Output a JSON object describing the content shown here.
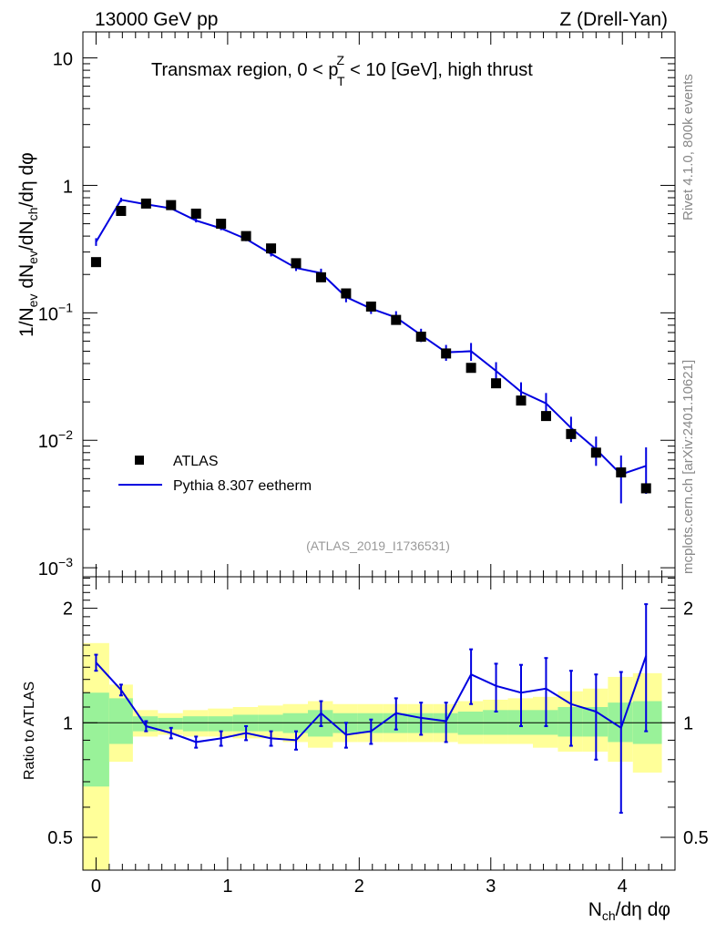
{
  "header": {
    "left": "13000 GeV pp",
    "right": "Z (Drell-Yan)"
  },
  "side_labels": {
    "top": "Rivet 4.1.0,  800k events",
    "bottom": "mcplots.cern.ch [arXiv:2401.10621]"
  },
  "chart_data": [
    {
      "type": "scatter",
      "title": "Transmax region, 0 < p_T^Z < 10 [GeV], high thrust",
      "title_parts": {
        "pre": "Transmax region, 0 < p",
        "sup": "Z",
        "sub": "T",
        "post": " < 10 [GeV], high thrust"
      },
      "ylabel": "1/N_ev dN_ev/dN_ch/dη dφ",
      "yscale": "log",
      "ylim": [
        0.00085,
        16
      ],
      "xlim": [
        -0.1,
        4.4
      ],
      "ytick_labels": [
        {
          "v": 0.001,
          "base": "10",
          "exp": "−3"
        },
        {
          "v": 0.01,
          "base": "10",
          "exp": "−2"
        },
        {
          "v": 0.1,
          "base": "10",
          "exp": "−1"
        },
        {
          "v": 1,
          "base": "1",
          "exp": ""
        },
        {
          "v": 10,
          "base": "10",
          "exp": ""
        }
      ],
      "watermark": "(ATLAS_2019_I1736531)",
      "legend": {
        "position": "bottom-left",
        "entries": [
          "ATLAS",
          "Pythia 8.307 eetherm"
        ]
      },
      "series": [
        {
          "name": "ATLAS",
          "style": "markers",
          "color": "#000000",
          "x": [
            0,
            0.19,
            0.38,
            0.57,
            0.76,
            0.95,
            1.14,
            1.33,
            1.52,
            1.71,
            1.9,
            2.09,
            2.28,
            2.47,
            2.66,
            2.85,
            3.04,
            3.23,
            3.42,
            3.61,
            3.8,
            3.99,
            4.18
          ],
          "y": [
            0.25,
            0.63,
            0.72,
            0.7,
            0.6,
            0.5,
            0.4,
            0.32,
            0.245,
            0.19,
            0.142,
            0.112,
            0.088,
            0.065,
            0.048,
            0.037,
            0.028,
            0.0205,
            0.0155,
            0.0112,
            0.008,
            0.0056,
            0.0042
          ]
        },
        {
          "name": "Pythia 8.307 eetherm",
          "style": "line",
          "color": "#0000e0",
          "x": [
            0,
            0.19,
            0.38,
            0.57,
            0.76,
            0.95,
            1.14,
            1.33,
            1.52,
            1.71,
            1.9,
            2.09,
            2.28,
            2.47,
            2.66,
            2.85,
            3.04,
            3.23,
            3.42,
            3.61,
            3.8,
            3.99,
            4.18
          ],
          "y": [
            0.36,
            0.77,
            0.71,
            0.66,
            0.53,
            0.46,
            0.38,
            0.29,
            0.225,
            0.205,
            0.133,
            0.108,
            0.092,
            0.067,
            0.049,
            0.05,
            0.035,
            0.024,
            0.0195,
            0.0125,
            0.0085,
            0.0054,
            0.0063
          ],
          "err": [
            0.025,
            0.03,
            0.02,
            0.02,
            0.018,
            0.015,
            0.015,
            0.013,
            0.012,
            0.017,
            0.012,
            0.01,
            0.011,
            0.008,
            0.007,
            0.008,
            0.006,
            0.0045,
            0.004,
            0.0028,
            0.0022,
            0.0022,
            0.0025
          ]
        }
      ]
    },
    {
      "type": "line",
      "ylabel": "Ratio to ATLAS",
      "xlabel": "N_ch/dη dφ",
      "yscale": "log",
      "ylim": [
        0.41,
        2.42
      ],
      "xlim": [
        -0.1,
        4.4
      ],
      "yticks": [
        0.5,
        1,
        2
      ],
      "ytick_labels": [
        "0.5",
        "1",
        "2"
      ],
      "xticks": [
        0,
        1,
        2,
        3,
        4
      ],
      "xtick_labels": [
        "0",
        "1",
        "2",
        "3",
        "4"
      ],
      "bands": {
        "edges": [
          -0.1,
          0.1,
          0.28,
          0.47,
          0.66,
          0.85,
          1.04,
          1.23,
          1.42,
          1.61,
          1.8,
          1.99,
          2.18,
          2.37,
          2.56,
          2.75,
          2.94,
          3.13,
          3.32,
          3.51,
          3.7,
          3.89,
          4.08,
          4.3
        ],
        "inner_lo": [
          0.68,
          0.88,
          0.95,
          0.96,
          0.95,
          0.95,
          0.95,
          0.95,
          0.94,
          0.92,
          0.94,
          0.94,
          0.94,
          0.94,
          0.94,
          0.93,
          0.93,
          0.93,
          0.93,
          0.92,
          0.92,
          0.89,
          0.88
        ],
        "inner_hi": [
          1.2,
          1.16,
          1.04,
          1.03,
          1.04,
          1.04,
          1.05,
          1.05,
          1.06,
          1.08,
          1.06,
          1.06,
          1.06,
          1.06,
          1.06,
          1.07,
          1.08,
          1.08,
          1.08,
          1.1,
          1.1,
          1.13,
          1.14
        ],
        "outer_lo": [
          0.36,
          0.79,
          0.92,
          0.93,
          0.92,
          0.92,
          0.91,
          0.91,
          0.89,
          0.86,
          0.89,
          0.89,
          0.89,
          0.89,
          0.89,
          0.88,
          0.88,
          0.88,
          0.86,
          0.84,
          0.84,
          0.79,
          0.74
        ],
        "outer_hi": [
          1.62,
          1.26,
          1.08,
          1.06,
          1.08,
          1.09,
          1.1,
          1.11,
          1.12,
          1.14,
          1.12,
          1.12,
          1.12,
          1.12,
          1.12,
          1.14,
          1.15,
          1.16,
          1.17,
          1.21,
          1.23,
          1.32,
          1.35
        ]
      },
      "series": [
        {
          "name": "Pythia 8.307 eetherm / ATLAS",
          "color": "#0000e0",
          "x": [
            0,
            0.19,
            0.38,
            0.57,
            0.76,
            0.95,
            1.14,
            1.33,
            1.52,
            1.71,
            1.9,
            2.09,
            2.28,
            2.47,
            2.66,
            2.85,
            3.04,
            3.23,
            3.42,
            3.61,
            3.8,
            3.99,
            4.18
          ],
          "y": [
            1.44,
            1.22,
            0.98,
            0.94,
            0.89,
            0.91,
            0.94,
            0.91,
            0.9,
            1.06,
            0.93,
            0.95,
            1.06,
            1.03,
            1.01,
            1.34,
            1.25,
            1.2,
            1.23,
            1.12,
            1.07,
            0.97,
            1.5
          ],
          "err": [
            0.07,
            0.04,
            0.03,
            0.03,
            0.03,
            0.04,
            0.04,
            0.04,
            0.05,
            0.08,
            0.07,
            0.07,
            0.1,
            0.1,
            0.12,
            0.22,
            0.18,
            0.22,
            0.25,
            0.25,
            0.27,
            0.39,
            0.55
          ]
        }
      ]
    }
  ]
}
